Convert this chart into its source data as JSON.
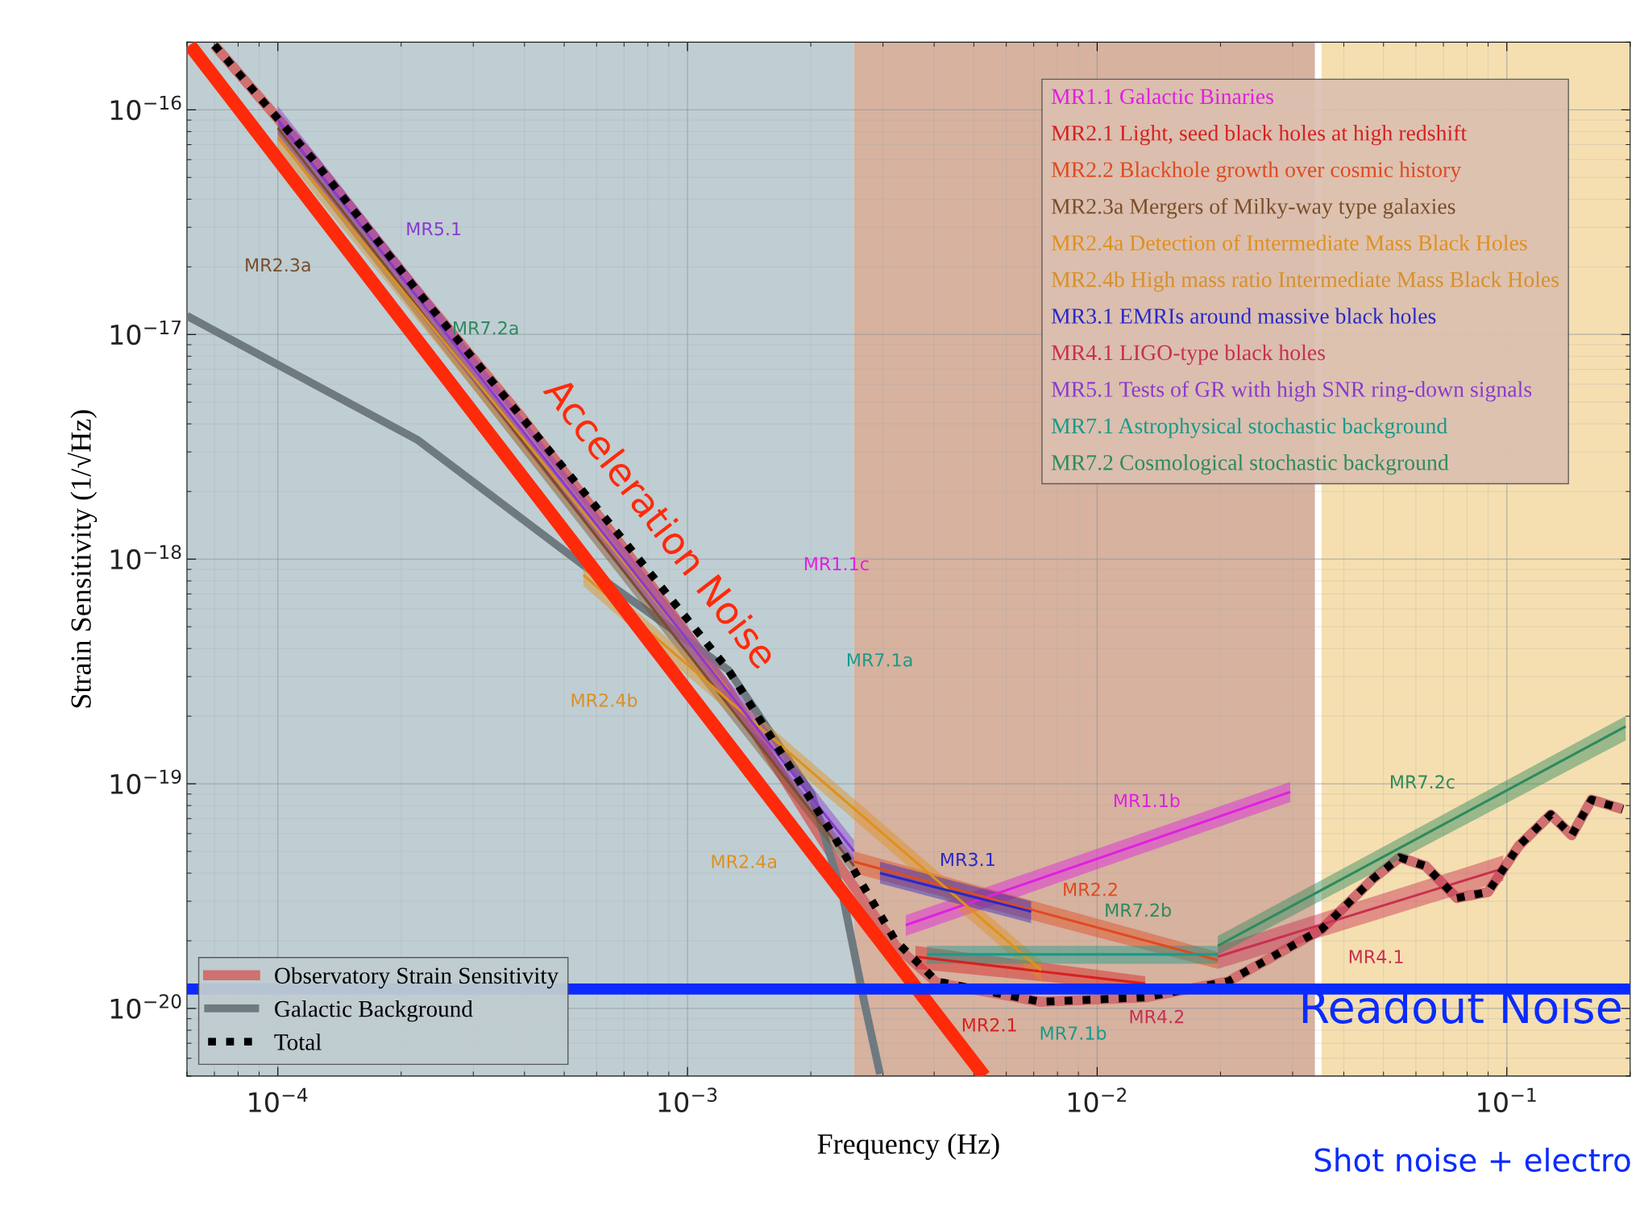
{
  "chart_data": {
    "type": "line",
    "xlabel": "Frequency (Hz)",
    "ylabel": "Strain Sensitivity (1/√Hz)",
    "log": "xy",
    "grid": true,
    "legend": "bottom left",
    "xlim": [
      6e-05,
      0.2
    ],
    "ylim": [
      5e-21,
      2e-16
    ],
    "xticks": [
      {
        "value": 0.0001,
        "label": "10$^{−4}$"
      },
      {
        "value": 0.001,
        "label": "10$^{−3}$"
      },
      {
        "value": 0.01,
        "label": "10$^{−2}$"
      },
      {
        "value": 0.1,
        "label": "10$^{−1}$"
      }
    ],
    "yticks": [
      {
        "value": 1e-20,
        "label": "10$^{−20}$"
      },
      {
        "value": 1e-19,
        "label": "10$^{−19}$"
      },
      {
        "value": 1e-18,
        "label": "10$^{−18}$"
      },
      {
        "value": 1e-17,
        "label": "10$^{−17}$"
      },
      {
        "value": 1e-16,
        "label": "10$^{−16}$"
      }
    ],
    "bands": [
      {
        "axis": "x",
        "from": 6e-05,
        "to": 0.00255,
        "color": "#b4c6cb"
      },
      {
        "axis": "x",
        "from": 0.00255,
        "to": 0.034,
        "color": "#cfa48e"
      },
      {
        "axis": "x",
        "from": 0.0353,
        "to": 0.2,
        "color": "#f3d9a2"
      }
    ],
    "ref_lines": [
      {
        "axis": "y",
        "value": 1.22e-20,
        "label": "Readout Noise",
        "color": "#0a2bff"
      }
    ],
    "series": [
      {
        "name": "MR1.1 Galactic Binaries",
        "color": "#e020e0",
        "x": [
          0.00341,
          0.0296
        ],
        "values": [
          2.35e-20,
          9.2e-20
        ],
        "lower": [
          2.1e-20,
          8.3e-20
        ],
        "upper": [
          2.6e-20,
          1.02e-19
        ]
      },
      {
        "name": "MR2.1 Light, seed black holes at high redshift",
        "color": "#d82020",
        "x": [
          0.0036,
          0.0131
        ],
        "values": [
          1.7e-20,
          1.29e-20
        ],
        "lower": [
          1.5e-20,
          1.19e-20
        ],
        "upper": [
          1.9e-20,
          1.39e-20
        ]
      },
      {
        "name": "MR2.2 Blackhole growth over cosmic history",
        "color": "#e04a20",
        "x": [
          0.00255,
          0.0197
        ],
        "values": [
          4.5e-20,
          1.64e-20
        ],
        "lower": [
          4e-20,
          1.5e-20
        ],
        "upper": [
          5e-20,
          1.78e-20
        ]
      },
      {
        "name": "MR2.3a Mergers of Milky-way type galaxies",
        "color": "#7a4e2b",
        "x": [
          0.0001,
          0.00255
        ],
        "values": [
          8.3e-17,
          4.3e-20
        ],
        "lower": [
          7.4e-17,
          3.9e-20
        ],
        "upper": [
          9.2e-17,
          4.7e-20
        ]
      },
      {
        "name": "MR2.4a Detection of Intermediate Mass Black Holes",
        "color": "#e0901e",
        "x": [
          0.000557,
          0.0073
        ],
        "values": [
          8.5e-19,
          1.48e-20
        ],
        "lower": [
          7.6e-19,
          1.32e-20
        ],
        "upper": [
          9.4e-19,
          1.63e-20
        ]
      },
      {
        "name": "MR2.4b High mass ratio Intermediate Mass Black Holes",
        "color": "#d8902a",
        "x": [
          0.0001,
          0.00126
        ],
        "values": [
          7.5e-17,
          2.6e-19
        ],
        "lower": [
          6.7e-17,
          2.3e-19
        ],
        "upper": [
          8.3e-17,
          2.9e-19
        ]
      },
      {
        "name": "MR3.1 EMRIs around massive black holes",
        "color": "#2828c8",
        "x": [
          0.00295,
          0.0069
        ],
        "values": [
          4e-20,
          2.7e-20
        ],
        "lower": [
          3.6e-20,
          2.4e-20
        ],
        "upper": [
          4.5e-20,
          3e-20
        ]
      },
      {
        "name": "MR4.1 LIGO-type black holes",
        "color": "#c83050",
        "x": [
          0.0197,
          0.098
        ],
        "values": [
          1.7e-20,
          4.2e-20
        ],
        "lower": [
          1.5e-20,
          3.7e-20
        ],
        "upper": [
          1.9e-20,
          4.8e-20
        ]
      },
      {
        "name": "MR5.1 Tests of GR with high SNR ring-down signals",
        "color": "#8a3ad0",
        "x": [
          0.0001,
          0.00255
        ],
        "values": [
          9e-17,
          5e-20
        ],
        "lower": [
          7.8e-17,
          4.3e-20
        ],
        "upper": [
          1.04e-16,
          5.6e-20
        ]
      },
      {
        "name": "MR7.1 Astrophysical stochastic background",
        "color": "#1a9a8a",
        "x": [
          0.00384,
          0.0197
        ],
        "values": [
          1.74e-20,
          1.74e-20
        ],
        "lower": [
          1.58e-20,
          1.58e-20
        ],
        "upper": [
          1.9e-20,
          1.9e-20
        ]
      },
      {
        "name": "MR7.2 Cosmological stochastic background",
        "color": "#2e8a5e",
        "x": [
          0.0197,
          0.195
        ],
        "values": [
          1.9e-20,
          1.8e-19
        ],
        "lower": [
          1.73e-20,
          1.56e-19
        ],
        "upper": [
          2.1e-20,
          2e-19
        ]
      },
      {
        "name": "Observatory Strain Sensitivity",
        "color": "#d07070",
        "line_style": "solid",
        "x": [
          7e-05,
          0.000122,
          0.000219,
          0.000393,
          0.000704,
          0.00126,
          0.00227,
          0.00322,
          0.00406,
          0.00729,
          0.0131,
          0.0209,
          0.0353,
          0.0473,
          0.0548,
          0.0634,
          0.0755,
          0.09,
          0.107,
          0.128,
          0.144,
          0.161,
          0.192
        ],
        "values": [
          1.94e-16,
          6e-17,
          1.56e-17,
          4.3e-18,
          1.1e-18,
          2.6e-19,
          4.7e-20,
          1.9e-20,
          1.3e-20,
          1.07e-20,
          1.12e-20,
          1.32e-20,
          2.25e-20,
          3.8e-20,
          4.7e-20,
          4.3e-20,
          3.1e-20,
          3.3e-20,
          5.3e-20,
          7.3e-20,
          5.9e-20,
          8.5e-20,
          7.7e-20
        ]
      },
      {
        "name": "Galactic Background",
        "color": "#6e7a80",
        "line_style": "solid",
        "x": [
          6e-05,
          0.000219,
          0.000557,
          0.00126,
          0.00201,
          0.0024,
          0.0027,
          0.00295
        ],
        "values": [
          1.21e-17,
          3.4e-18,
          9.4e-19,
          3.2e-19,
          9e-20,
          3.1e-20,
          1.07e-20,
          5.1e-21
        ]
      },
      {
        "name": "Total",
        "color": "#000000",
        "line_style": "dotted",
        "x": [
          7e-05,
          0.000122,
          0.000219,
          0.000393,
          0.000704,
          0.00126,
          0.00227,
          0.00322,
          0.00406,
          0.00729,
          0.0131,
          0.0209,
          0.0353,
          0.0473,
          0.0548,
          0.0634,
          0.0755,
          0.09,
          0.107,
          0.128,
          0.144,
          0.161,
          0.192
        ],
        "values": [
          1.94e-16,
          6e-17,
          1.56e-17,
          4.3e-18,
          1.19e-18,
          3.2e-19,
          5.9e-20,
          2e-20,
          1.32e-20,
          1.07e-20,
          1.12e-20,
          1.32e-20,
          2.25e-20,
          3.8e-20,
          4.7e-20,
          4.3e-20,
          3.1e-20,
          3.3e-20,
          5.3e-20,
          7.3e-20,
          5.9e-20,
          8.5e-20,
          7.7e-20
        ]
      },
      {
        "color": "#ff2a0a",
        "line_style": "solid",
        "x": [
          6.1e-05,
          0.0053
        ],
        "values": [
          1.94e-16,
          5e-21
        ]
      }
    ],
    "annotations": [
      "MR5.1",
      "MR2.3a",
      "MR7.2a",
      "MR1.1c",
      "MR7.1a",
      "MR2.4b",
      "MR2.4a",
      "MR1.1b",
      "MR3.1",
      "MR2.2",
      "MR7.2b",
      "MR7.2c",
      "MR4.1",
      "MR4.2",
      "MR7.1b",
      "MR2.1",
      "Acceleration Noise",
      "Shot noise + electro"
    ]
  }
}
